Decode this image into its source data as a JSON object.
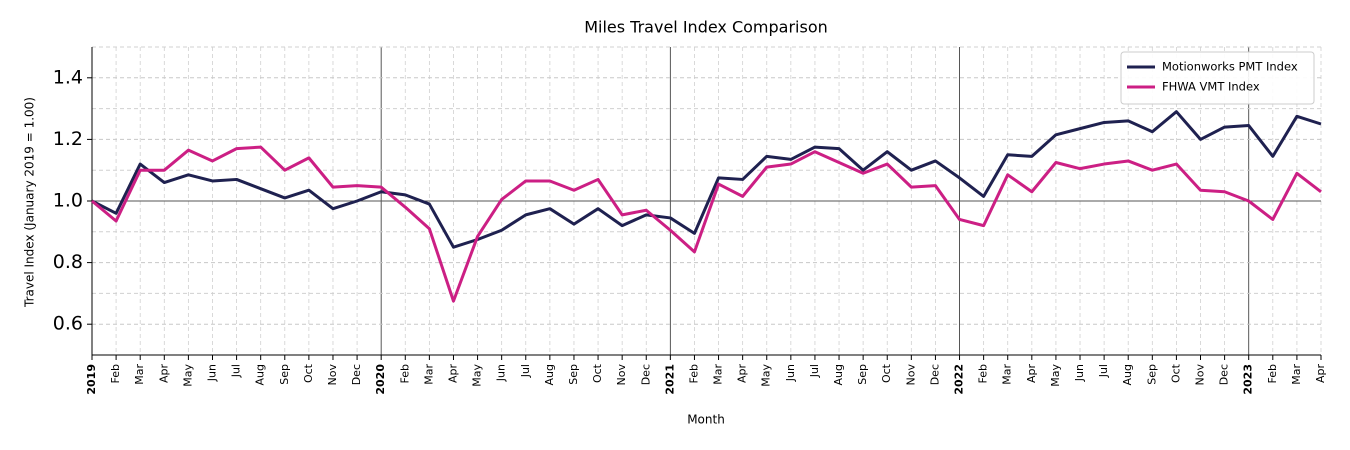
{
  "chart_data": {
    "type": "line",
    "title": "Miles Travel Index Comparison",
    "x_label": "Month",
    "y_label": "Travel Index (January 2019 = 1.00)",
    "categories": [
      "2019",
      "Feb",
      "Mar",
      "Apr",
      "May",
      "Jun",
      "Jul",
      "Aug",
      "Sep",
      "Oct",
      "Nov",
      "Dec",
      "2020",
      "Feb",
      "Mar",
      "Apr",
      "May",
      "Jun",
      "Jul",
      "Aug",
      "Sep",
      "Oct",
      "Nov",
      "Dec",
      "2021",
      "Feb",
      "Mar",
      "Apr",
      "May",
      "Jun",
      "Jul",
      "Aug",
      "Sep",
      "Oct",
      "Nov",
      "Dec",
      "2022",
      "Feb",
      "Mar",
      "Apr",
      "May",
      "Jun",
      "Jul",
      "Aug",
      "Sep",
      "Oct",
      "Nov",
      "Dec",
      "2023",
      "Feb",
      "Mar",
      "Apr"
    ],
    "series": [
      {
        "name": "Motionworks PMT Index",
        "color": "#1f2150",
        "values": [
          1.0,
          0.96,
          1.12,
          1.06,
          1.085,
          1.065,
          1.07,
          1.04,
          1.01,
          1.035,
          0.975,
          1.0,
          1.03,
          1.02,
          0.99,
          0.85,
          0.875,
          0.905,
          0.955,
          0.975,
          0.925,
          0.975,
          0.92,
          0.955,
          0.945,
          0.895,
          1.075,
          1.07,
          1.145,
          1.135,
          1.175,
          1.17,
          1.1,
          1.16,
          1.1,
          1.13,
          1.075,
          1.015,
          1.15,
          1.145,
          1.215,
          1.235,
          1.255,
          1.26,
          1.225,
          1.29,
          1.2,
          1.24,
          1.245,
          1.145,
          1.275,
          1.25
        ]
      },
      {
        "name": "FHWA VMT Index",
        "color": "#cc1f84",
        "values": [
          1.0,
          0.935,
          1.1,
          1.1,
          1.165,
          1.13,
          1.17,
          1.175,
          1.1,
          1.14,
          1.045,
          1.05,
          1.045,
          0.98,
          0.91,
          0.675,
          0.885,
          1.005,
          1.065,
          1.065,
          1.035,
          1.07,
          0.955,
          0.97,
          0.905,
          0.835,
          1.055,
          1.015,
          1.11,
          1.12,
          1.16,
          1.125,
          1.09,
          1.12,
          1.045,
          1.05,
          0.94,
          0.92,
          1.085,
          1.03,
          1.125,
          1.105,
          1.12,
          1.13,
          1.1,
          1.12,
          1.035,
          1.03,
          1.0,
          0.94,
          1.09,
          1.03
        ]
      }
    ],
    "ylim": [
      0.5,
      1.5
    ],
    "yticks": [
      0.6,
      0.8,
      {
        "value": 1,
        "label": "1.0"
      },
      1.2,
      1.4
    ],
    "reference_y": 1,
    "grid": true,
    "legend": "upper right"
  }
}
